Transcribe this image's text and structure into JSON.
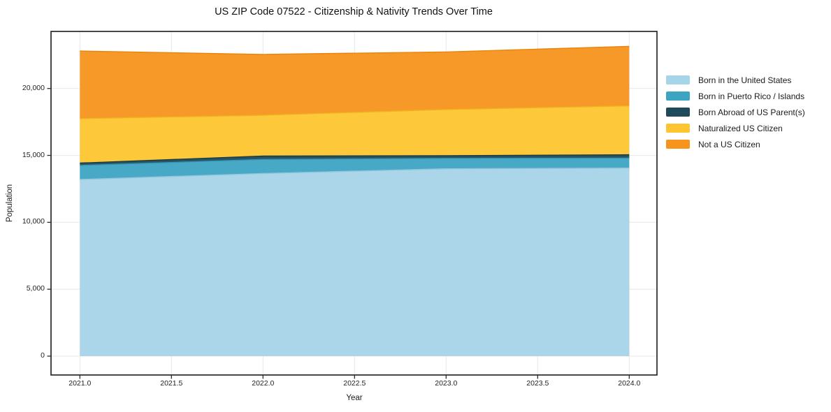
{
  "chart_data": {
    "type": "area",
    "stacked": true,
    "title": "US ZIP Code 07522 - Citizenship & Nativity Trends Over Time",
    "xlabel": "Year",
    "ylabel": "Population",
    "x": [
      2021,
      2022,
      2023,
      2024
    ],
    "series": [
      {
        "name": "Born in the United States",
        "color": "#a6d4e8",
        "edge": "#8fc5dd",
        "values": [
          13200,
          13650,
          14000,
          14050
        ]
      },
      {
        "name": "Born in Puerto Rico / Islands",
        "color": "#3da4c2",
        "edge": "#3495b2",
        "values": [
          1050,
          1050,
          780,
          750
        ]
      },
      {
        "name": "Born Abroad of US Parent(s)",
        "color": "#1e4a5a",
        "edge": "#163c4a",
        "values": [
          180,
          250,
          200,
          250
        ]
      },
      {
        "name": "Naturalized US Citizen",
        "color": "#fdc52f",
        "edge": "#efb21b",
        "values": [
          3320,
          3050,
          3450,
          3650
        ]
      },
      {
        "name": "Not a US Citizen",
        "color": "#f7941e",
        "edge": "#e88407",
        "values": [
          5050,
          4550,
          4300,
          4450
        ]
      }
    ],
    "totals": [
      22800,
      22550,
      22730,
      23150
    ],
    "x_ticks": [
      2021.0,
      2021.5,
      2022.0,
      2022.5,
      2023.0,
      2023.5,
      2024.0
    ],
    "x_tick_labels": [
      "2021.0",
      "2021.5",
      "2022.0",
      "2022.5",
      "2023.0",
      "2023.5",
      "2024.0"
    ],
    "y_ticks": [
      0,
      5000,
      10000,
      15000,
      20000
    ],
    "y_tick_labels": [
      "0",
      "5,000",
      "10,000",
      "15,000",
      "20,000"
    ],
    "xlim": [
      2021.0,
      2024.0
    ],
    "ylim": [
      0,
      24260
    ],
    "grid": true,
    "legend_position": "right",
    "grid_color": "#e9e9e9",
    "frame_color": "#1a1a1a",
    "tick_color": "#2b2b2b"
  }
}
